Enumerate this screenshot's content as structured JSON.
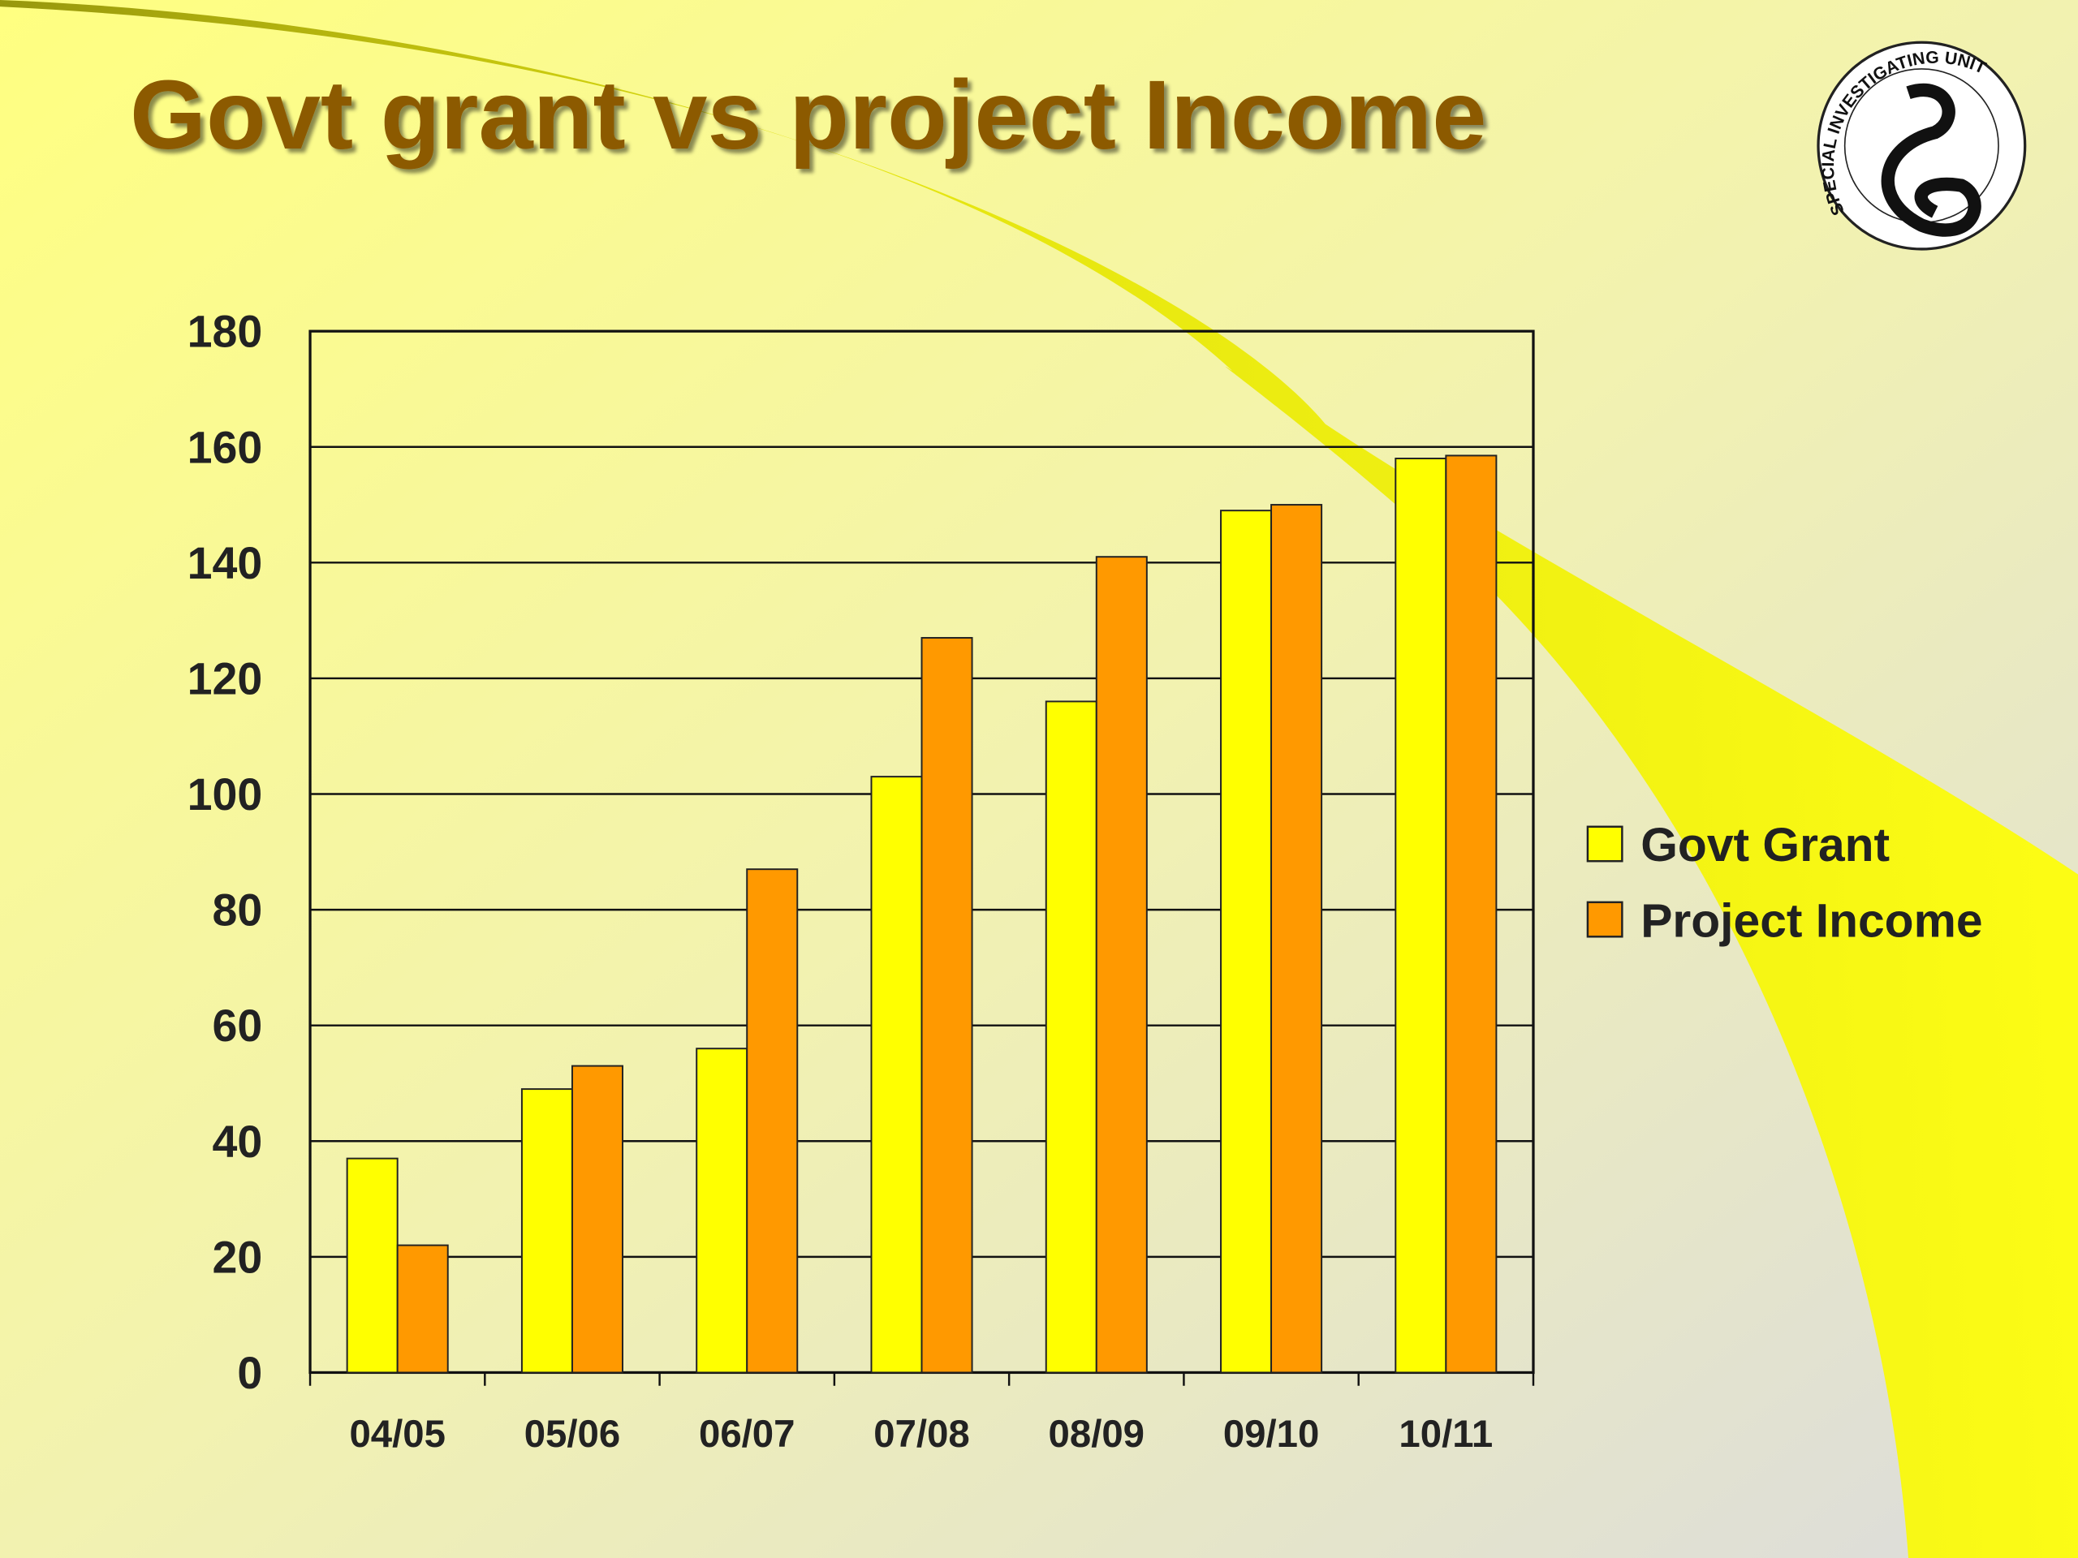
{
  "logo_text": "SPECIAL INVESTIGATING UNIT",
  "chart_data": {
    "type": "bar",
    "title": "Govt grant vs project Income",
    "categories": [
      "04/05",
      "05/06",
      "06/07",
      "07/08",
      "08/09",
      "09/10",
      "10/11"
    ],
    "series": [
      {
        "name": "Govt Grant",
        "color": "#ffff00",
        "values": [
          37,
          49,
          56,
          103,
          116,
          149,
          158
        ]
      },
      {
        "name": "Project Income",
        "color": "#ff9900",
        "values": [
          22,
          53,
          87,
          127,
          141,
          150,
          158.5
        ]
      }
    ],
    "ylim": [
      0,
      180
    ],
    "yticks": [
      0,
      20,
      40,
      60,
      80,
      100,
      120,
      140,
      160,
      180
    ],
    "grid": true,
    "legend": "right"
  }
}
